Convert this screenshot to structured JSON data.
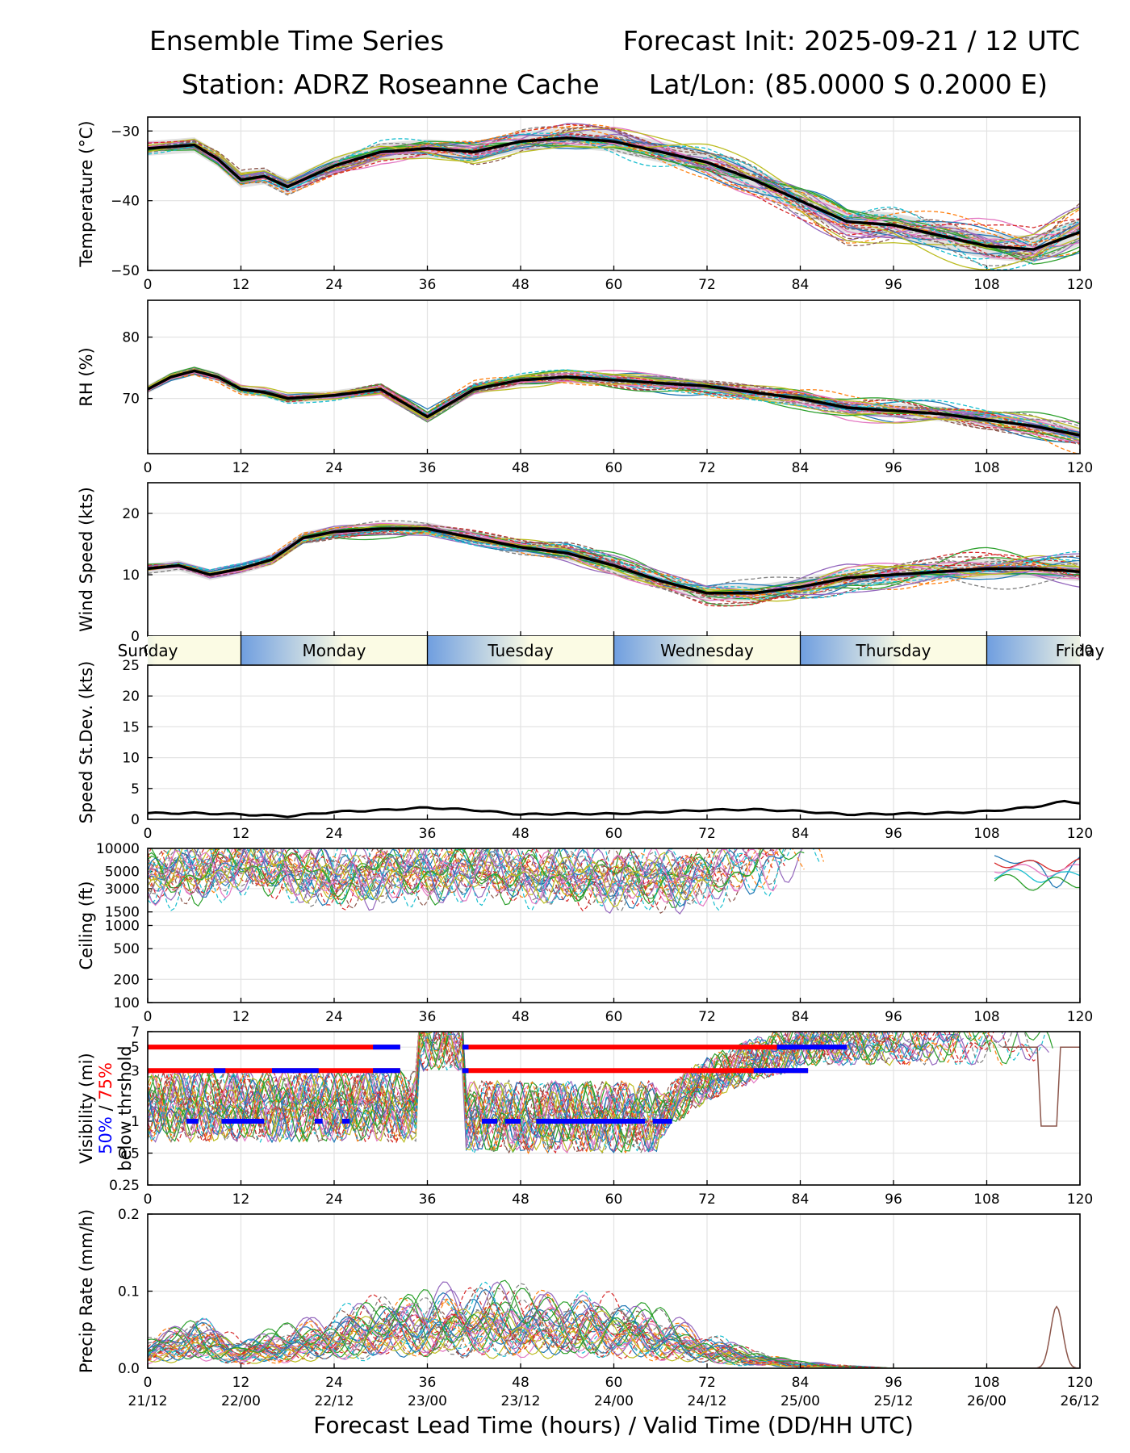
{
  "header": {
    "title_left": "Ensemble Time Series",
    "title_right": "Forecast Init: 2025-09-21 / 12 UTC",
    "station": "Station: ADRZ Roseanne Cache",
    "latlon": "Lat/Lon: (85.0000 S 0.2000 E)"
  },
  "colors": {
    "mean": "#000000",
    "spread": "#d9d9d9",
    "grid": "#e3e3e3",
    "p50": "#0000ff",
    "p75": "#ff0000",
    "members": [
      "#1f77b4",
      "#ff7f0e",
      "#2ca02c",
      "#d62728",
      "#9467bd",
      "#8c564b",
      "#e377c2",
      "#7f7f7f",
      "#bcbd22",
      "#17becf"
    ]
  },
  "x_axis": {
    "ticks": [
      0,
      12,
      24,
      36,
      48,
      60,
      72,
      84,
      96,
      108,
      120
    ],
    "valid_time_labels": [
      "21/12",
      "22/00",
      "22/12",
      "23/00",
      "23/12",
      "24/00",
      "24/12",
      "25/00",
      "25/12",
      "26/00",
      "26/12"
    ],
    "xlabel": "Forecast Lead Time (hours) / Valid Time (DD/HH UTC)",
    "range": [
      0,
      120
    ]
  },
  "day_bar": {
    "days": [
      "Sunday",
      "Monday",
      "Tuesday",
      "Wednesday",
      "Thursday",
      "Friday"
    ],
    "day_boundaries_hours": [
      0,
      12,
      36,
      60,
      84,
      108,
      120
    ]
  },
  "chart_data": [
    {
      "id": "temperature",
      "type": "line",
      "ylabel": "Temperature (°C)",
      "ylim": [
        -50,
        -28
      ],
      "yticks": [
        -30,
        -40,
        -50
      ],
      "ytick_labels": [
        "−30",
        "−40",
        "−50"
      ],
      "x": [
        0,
        6,
        9,
        12,
        15,
        18,
        24,
        30,
        36,
        42,
        48,
        54,
        60,
        66,
        72,
        78,
        84,
        90,
        96,
        102,
        108,
        114,
        120
      ],
      "mean": [
        -32.5,
        -32,
        -34,
        -37,
        -36.5,
        -38,
        -35,
        -33,
        -32.5,
        -33,
        -31.5,
        -31,
        -31.5,
        -33,
        -34.5,
        -37,
        -40,
        -43,
        -43.5,
        -45,
        -46.5,
        -47,
        -44.5
      ],
      "spread": 1.5
    },
    {
      "id": "rh",
      "type": "line",
      "ylabel": "RH (%)",
      "ylim": [
        61,
        86
      ],
      "yticks": [
        70,
        80
      ],
      "x": [
        0,
        3,
        6,
        9,
        12,
        15,
        18,
        24,
        30,
        36,
        42,
        48,
        54,
        60,
        66,
        72,
        78,
        84,
        90,
        96,
        102,
        108,
        114,
        120
      ],
      "mean": [
        71.5,
        73.5,
        74.5,
        73.5,
        71.5,
        71,
        70,
        70.5,
        71.5,
        67,
        71.5,
        73,
        73.5,
        73,
        72.5,
        72,
        71,
        70,
        68.5,
        68,
        67.5,
        66.5,
        65.5,
        64
      ],
      "spread": 1.0
    },
    {
      "id": "wind_speed",
      "type": "line",
      "ylabel": "Wind Speed (kts)",
      "ylim": [
        0,
        25
      ],
      "yticks": [
        0,
        10,
        20
      ],
      "x": [
        0,
        4,
        8,
        12,
        16,
        20,
        24,
        30,
        36,
        42,
        48,
        54,
        60,
        66,
        72,
        78,
        84,
        90,
        96,
        102,
        108,
        114,
        120
      ],
      "mean": [
        11,
        11.5,
        10,
        11,
        12.5,
        16,
        17,
        17.5,
        17.5,
        16,
        14.5,
        13.5,
        11.5,
        9,
        7,
        7,
        8,
        9.5,
        10,
        10.5,
        11,
        11,
        10.5
      ],
      "spread": 1.2
    },
    {
      "id": "speed_stdev",
      "type": "line",
      "ylabel": "Speed St.Dev. (kts)",
      "ylim": [
        0,
        25
      ],
      "yticks": [
        0,
        5,
        10,
        15,
        20,
        25
      ],
      "x": [
        0,
        6,
        12,
        18,
        24,
        30,
        36,
        42,
        48,
        54,
        60,
        66,
        72,
        78,
        84,
        90,
        96,
        102,
        108,
        114,
        118,
        120
      ],
      "mean": [
        1,
        1,
        0.8,
        0.5,
        1.2,
        1.5,
        1.9,
        1.5,
        0.8,
        0.9,
        0.9,
        1.2,
        1.5,
        1.6,
        1.3,
        0.8,
        0.9,
        1.0,
        1.3,
        2.0,
        2.9,
        2.7
      ]
    },
    {
      "id": "ceiling",
      "type": "line",
      "ylabel": "Ceiling (ft)",
      "yscale": "log",
      "ylim": [
        100,
        10000
      ],
      "yticks": [
        100,
        200,
        500,
        1000,
        1500,
        3000,
        5000,
        10000
      ],
      "ytick_labels": [
        "100",
        "200",
        "500",
        "1000",
        "1500",
        "3000",
        "5000",
        "10000"
      ],
      "x": [
        0,
        6,
        12,
        18,
        24,
        30,
        36,
        42,
        48,
        54,
        60,
        66,
        72,
        78,
        84,
        114,
        118,
        120
      ],
      "typical": [
        4500,
        5000,
        6500,
        5500,
        3800,
        5000,
        5000,
        5500,
        4800,
        4200,
        4200,
        4000,
        4500,
        6000,
        9500,
        7000,
        6500,
        7500
      ]
    },
    {
      "id": "visibility",
      "type": "line",
      "ylabel": "Visibility (mi)",
      "sublabel_p50": "50%",
      "sublabel_sep": " / ",
      "sublabel_p75": "75%",
      "sublabel_below": "below thrshold",
      "yscale": "log",
      "ylim": [
        0.25,
        7
      ],
      "yticks": [
        0.25,
        0.5,
        1,
        3,
        5,
        7
      ],
      "ytick_labels": [
        "0.25",
        "0.5",
        "1",
        "3",
        "5",
        "7"
      ],
      "threshold_75": [
        {
          "level": 5,
          "segments": [
            [
              0,
              32.5
            ],
            [
              40.5,
              89
            ]
          ]
        },
        {
          "level": 3,
          "segments": [
            [
              0,
              32.5
            ],
            [
              40.5,
              85
            ]
          ]
        }
      ],
      "threshold_50": [
        {
          "level": 5,
          "segments": [
            [
              29,
              32.5
            ],
            [
              40.5,
              41.3
            ],
            [
              81,
              90
            ]
          ]
        },
        {
          "level": 3,
          "segments": [
            [
              8.5,
              10
            ],
            [
              16,
              22
            ],
            [
              29,
              32.5
            ],
            [
              40.5,
              41.3
            ],
            [
              78,
              85
            ]
          ]
        },
        {
          "level": 1,
          "segments": [
            [
              5,
              6.5
            ],
            [
              9.5,
              15
            ],
            [
              21.5,
              22.5
            ],
            [
              25,
              26
            ],
            [
              43,
              45
            ],
            [
              46,
              48
            ],
            [
              50,
              64
            ],
            [
              65,
              67.5
            ]
          ]
        }
      ]
    },
    {
      "id": "precip",
      "type": "line",
      "ylabel": "Precip Rate (mm/h)",
      "ylim": [
        0,
        0.2
      ],
      "yticks": [
        0.0,
        0.1,
        0.2
      ],
      "ytick_labels": [
        "0.0",
        "0.1",
        "0.2"
      ],
      "x": [
        0,
        6,
        12,
        18,
        24,
        30,
        36,
        42,
        48,
        54,
        60,
        66,
        72,
        78,
        84,
        90,
        96,
        108,
        114,
        116,
        118,
        120
      ],
      "typical": [
        0.02,
        0.04,
        0.02,
        0.03,
        0.04,
        0.05,
        0.055,
        0.06,
        0.055,
        0.055,
        0.05,
        0.04,
        0.025,
        0.012,
        0.005,
        0.002,
        0,
        0,
        0,
        0,
        0,
        0
      ],
      "member_peak": {
        "x": 117,
        "value": 0.08
      }
    }
  ]
}
